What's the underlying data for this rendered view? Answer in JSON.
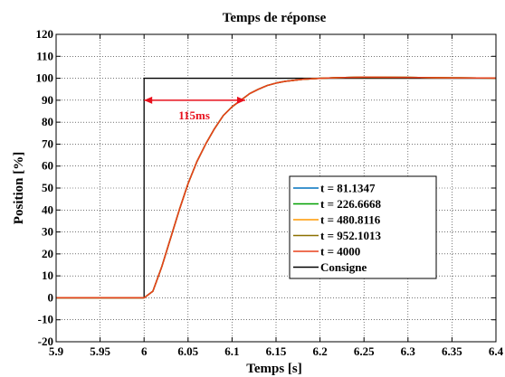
{
  "chart_data": {
    "type": "line",
    "title": "Temps de réponse",
    "xlabel": "Temps [s]",
    "ylabel": "Position [%]",
    "xlim": [
      5.9,
      6.4
    ],
    "ylim": [
      -20,
      120
    ],
    "xticks": [
      5.9,
      5.95,
      6,
      6.05,
      6.1,
      6.15,
      6.2,
      6.25,
      6.3,
      6.35,
      6.4
    ],
    "xtick_labels": [
      "5.9",
      "5.95",
      "6",
      "6.05",
      "6.1",
      "6.15",
      "6.2",
      "6.25",
      "6.3",
      "6.35",
      "6.4"
    ],
    "yticks": [
      -20,
      -10,
      0,
      10,
      20,
      30,
      40,
      50,
      60,
      70,
      80,
      90,
      100,
      110,
      120
    ],
    "ytick_labels": [
      "-20",
      "-10",
      "0",
      "10",
      "20",
      "30",
      "40",
      "50",
      "60",
      "70",
      "80",
      "90",
      "100",
      "110",
      "120"
    ],
    "grid": true,
    "legend_position": "lower-right",
    "x": [
      5.9,
      6.0,
      6.01,
      6.02,
      6.03,
      6.04,
      6.05,
      6.06,
      6.07,
      6.08,
      6.09,
      6.1,
      6.11,
      6.12,
      6.13,
      6.14,
      6.15,
      6.16,
      6.18,
      6.2,
      6.22,
      6.25,
      6.3,
      6.35,
      6.4
    ],
    "series": [
      {
        "name": "t = 81.1347",
        "color": "#0072BD",
        "values": [
          0,
          0,
          3,
          14,
          27,
          40,
          52,
          62,
          70,
          77,
          83,
          87,
          90,
          93,
          95,
          96.7,
          97.8,
          98.6,
          99.5,
          100,
          100.3,
          100.5,
          100.4,
          100.2,
          100.1
        ]
      },
      {
        "name": "t = 226.6668",
        "color": "#00A000",
        "values": [
          0,
          0,
          3,
          14,
          27,
          40,
          52,
          62,
          70,
          77,
          83,
          87,
          90,
          93,
          95,
          96.7,
          97.8,
          98.6,
          99.5,
          100,
          100.3,
          100.5,
          100.4,
          100.2,
          100.1
        ]
      },
      {
        "name": "t = 480.8116",
        "color": "#FF9900",
        "values": [
          0,
          0,
          3,
          14,
          27,
          40,
          52,
          62,
          70,
          77,
          83,
          87,
          90,
          93,
          95,
          96.7,
          97.8,
          98.6,
          99.5,
          100,
          100.3,
          100.5,
          100.4,
          100.2,
          100.1
        ]
      },
      {
        "name": "t = 952.1013",
        "color": "#8C7000",
        "values": [
          0,
          0,
          3,
          14,
          27,
          40,
          52,
          62,
          70,
          77,
          83,
          87,
          90,
          93,
          95,
          96.7,
          97.8,
          98.6,
          99.5,
          100,
          100.3,
          100.5,
          100.4,
          100.2,
          100.1
        ]
      },
      {
        "name": "t = 4000",
        "color": "#E8401C",
        "values": [
          0,
          0,
          3,
          14,
          27,
          40,
          52,
          62,
          70,
          77,
          83,
          87,
          90,
          93,
          95,
          96.7,
          97.8,
          98.6,
          99.5,
          100,
          100.3,
          100.5,
          100.4,
          100.2,
          100.1
        ]
      }
    ],
    "consigne": {
      "name": "Consigne",
      "color": "#000000",
      "x": [
        5.9,
        6.0,
        6.0,
        6.4
      ],
      "values": [
        0,
        0,
        100,
        100
      ]
    },
    "annotations": [
      {
        "text": "115ms",
        "color": "#E8101C",
        "arrow_from": [
          6.0,
          90
        ],
        "arrow_to": [
          6.115,
          90
        ],
        "text_at": [
          6.057,
          83
        ]
      }
    ]
  }
}
